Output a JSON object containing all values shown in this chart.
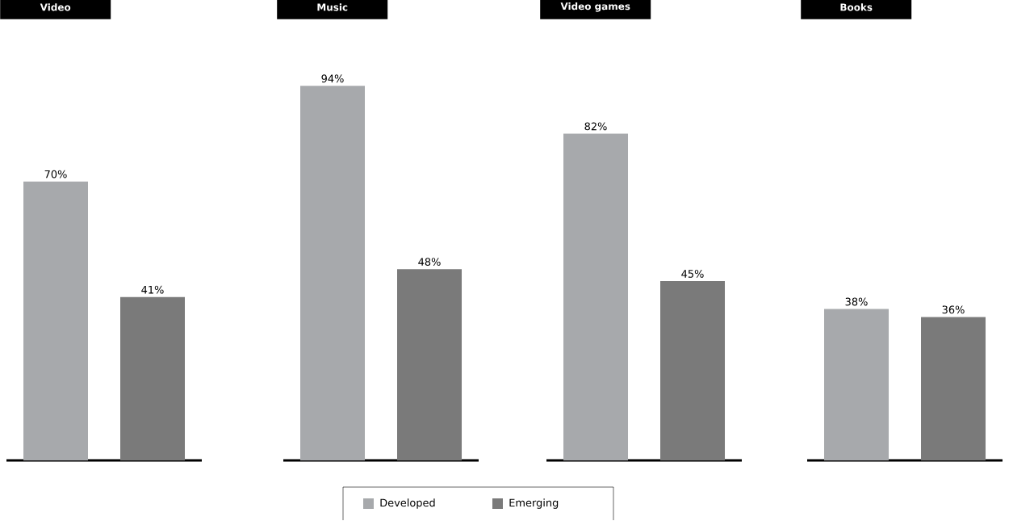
{
  "chart_data": [
    {
      "type": "bar",
      "title": "Video",
      "categories": [
        null
      ],
      "legend": "bottom",
      "series": [
        {
          "name": "Developed",
          "color": "#a7a9ac",
          "values": [
            70
          ],
          "value_labels": [
            "70%"
          ]
        },
        {
          "name": "Emerging",
          "color": "#7a7a7a",
          "values": [
            41
          ],
          "value_labels": [
            "41%"
          ]
        }
      ]
    },
    {
      "type": "bar",
      "title": "Music",
      "categories": [
        null
      ],
      "series": [
        {
          "color": "#a7a9ac",
          "values": [
            94
          ],
          "value_labels": [
            "94%"
          ]
        },
        {
          "color": "#7a7a7a",
          "values": [
            48
          ],
          "value_labels": [
            "48%"
          ]
        }
      ]
    },
    {
      "type": "bar",
      "title": "Video games",
      "categories": [
        null
      ],
      "series": [
        {
          "color": "#a7a9ac",
          "values": [
            82
          ],
          "value_labels": [
            "82%"
          ]
        },
        {
          "color": "#7a7a7a",
          "values": [
            45
          ],
          "value_labels": [
            "45%"
          ]
        }
      ]
    },
    {
      "type": "bar",
      "title": "Books",
      "categories": [
        null
      ],
      "series": [
        {
          "color": "#a7a9ac",
          "values": [
            38
          ],
          "value_labels": [
            "38%"
          ]
        },
        {
          "color": "#7a7a7a",
          "values": [
            36
          ],
          "value_labels": [
            "36%"
          ]
        }
      ]
    }
  ]
}
